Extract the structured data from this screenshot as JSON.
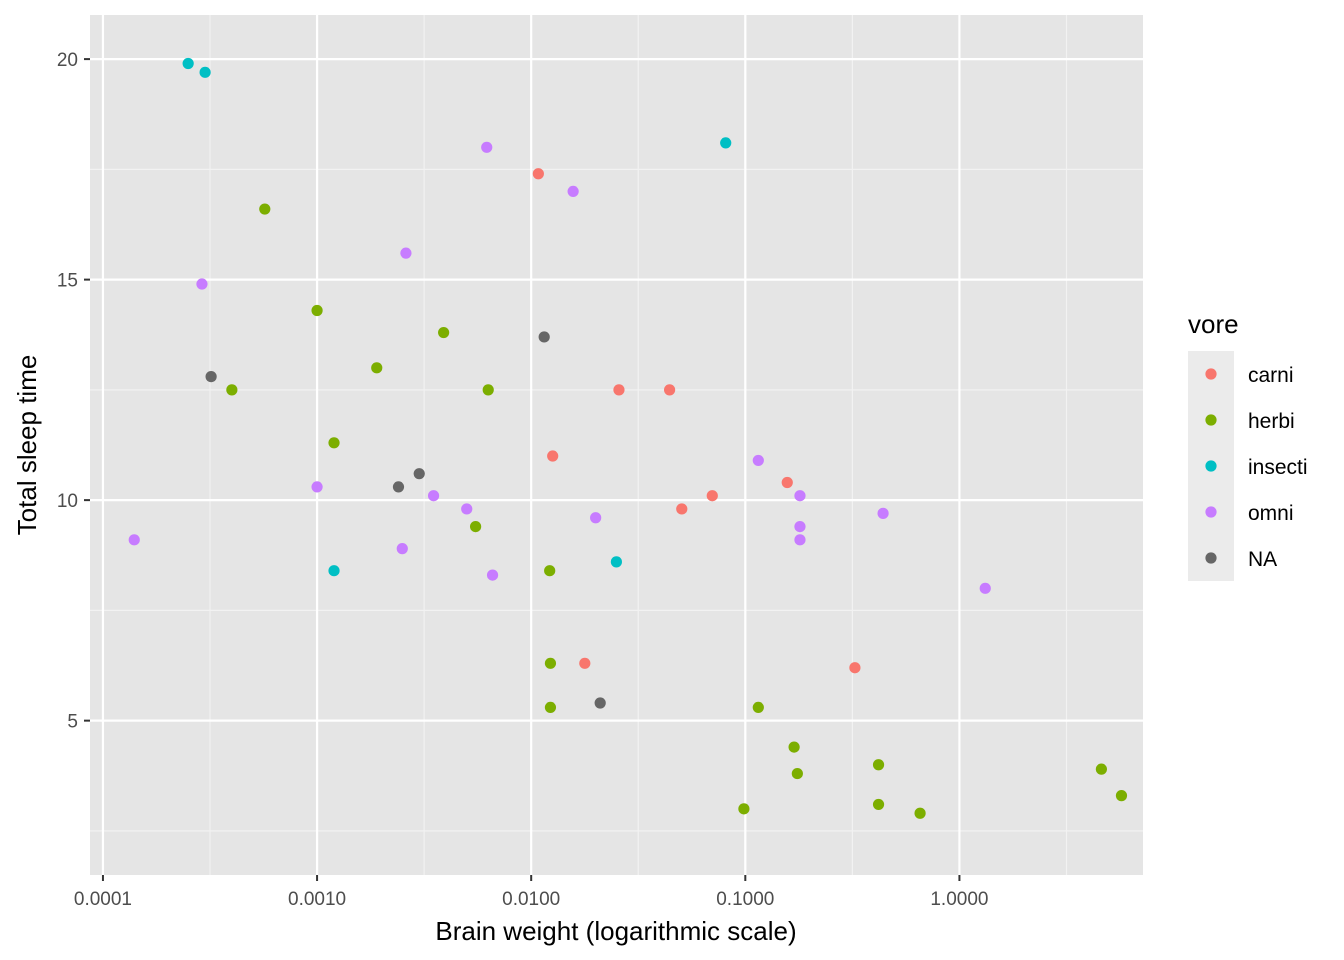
{
  "chart_data": {
    "type": "scatter",
    "xlabel": "Brain weight (logarithmic scale)",
    "ylabel": "Total sleep time",
    "x_scale": "log10",
    "xlim": [
      8.7e-05,
      7.2
    ],
    "ylim": [
      1.5,
      21
    ],
    "x_ticks": [
      0.0001,
      0.001,
      0.01,
      0.1,
      1
    ],
    "x_tick_labels": [
      "0.0001",
      "0.0010",
      "0.0100",
      "0.1000",
      "1.0000"
    ],
    "y_ticks": [
      5,
      10,
      15,
      20
    ],
    "y_tick_labels": [
      "5",
      "10",
      "15",
      "20"
    ],
    "grid": true,
    "background": "#e5e5e5",
    "legend": {
      "title": "vore",
      "position": "right"
    },
    "series": [
      {
        "name": "carni",
        "color": "#f8766d",
        "points": [
          {
            "x": 0.0108,
            "y": 17.4
          },
          {
            "x": 0.0126,
            "y": 11.0
          },
          {
            "x": 0.0257,
            "y": 12.5
          },
          {
            "x": 0.0443,
            "y": 12.5
          },
          {
            "x": 0.0505,
            "y": 9.8
          },
          {
            "x": 0.0701,
            "y": 10.1
          },
          {
            "x": 0.0178,
            "y": 6.3
          },
          {
            "x": 0.157,
            "y": 10.4
          },
          {
            "x": 0.325,
            "y": 6.2
          }
        ]
      },
      {
        "name": "herbi",
        "color": "#7cae00",
        "points": [
          {
            "x": 0.00057,
            "y": 16.6
          },
          {
            "x": 0.001,
            "y": 14.3
          },
          {
            "x": 0.0004,
            "y": 12.5
          },
          {
            "x": 0.0039,
            "y": 13.8
          },
          {
            "x": 0.0019,
            "y": 13.0
          },
          {
            "x": 0.0063,
            "y": 12.5
          },
          {
            "x": 0.0012,
            "y": 11.3
          },
          {
            "x": 0.0055,
            "y": 9.4
          },
          {
            "x": 0.0122,
            "y": 8.4
          },
          {
            "x": 0.0123,
            "y": 6.3
          },
          {
            "x": 0.0123,
            "y": 5.3
          },
          {
            "x": 0.115,
            "y": 5.3
          },
          {
            "x": 0.169,
            "y": 4.4
          },
          {
            "x": 0.175,
            "y": 3.8
          },
          {
            "x": 0.0985,
            "y": 3.0
          },
          {
            "x": 0.419,
            "y": 4.0
          },
          {
            "x": 0.419,
            "y": 3.1
          },
          {
            "x": 0.655,
            "y": 2.9
          },
          {
            "x": 4.603,
            "y": 3.9
          },
          {
            "x": 5.712,
            "y": 3.3
          }
        ]
      },
      {
        "name": "insecti",
        "color": "#00bfc4",
        "points": [
          {
            "x": 0.00025,
            "y": 19.9
          },
          {
            "x": 0.0003,
            "y": 19.7
          },
          {
            "x": 0.081,
            "y": 18.1
          },
          {
            "x": 0.0012,
            "y": 8.4
          },
          {
            "x": 0.025,
            "y": 8.6
          }
        ]
      },
      {
        "name": "omni",
        "color": "#c77cff",
        "points": [
          {
            "x": 0.0062,
            "y": 18.0
          },
          {
            "x": 0.0157,
            "y": 17.0
          },
          {
            "x": 0.0026,
            "y": 15.6
          },
          {
            "x": 0.00029,
            "y": 14.9
          },
          {
            "x": 0.001,
            "y": 10.3
          },
          {
            "x": 0.0035,
            "y": 10.1
          },
          {
            "x": 0.005,
            "y": 9.8
          },
          {
            "x": 0.02,
            "y": 9.6
          },
          {
            "x": 0.00014,
            "y": 9.1
          },
          {
            "x": 0.0025,
            "y": 8.9
          },
          {
            "x": 0.0066,
            "y": 8.3
          },
          {
            "x": 0.115,
            "y": 10.9
          },
          {
            "x": 0.18,
            "y": 10.1
          },
          {
            "x": 0.18,
            "y": 9.4
          },
          {
            "x": 0.18,
            "y": 9.1
          },
          {
            "x": 0.44,
            "y": 9.7
          },
          {
            "x": 1.32,
            "y": 8.0
          }
        ]
      },
      {
        "name": "NA",
        "color": "#666666",
        "points": [
          {
            "x": 0.0115,
            "y": 13.7
          },
          {
            "x": 0.00032,
            "y": 12.8
          },
          {
            "x": 0.003,
            "y": 10.6
          },
          {
            "x": 0.0024,
            "y": 10.3
          },
          {
            "x": 0.021,
            "y": 5.4
          }
        ]
      }
    ]
  }
}
